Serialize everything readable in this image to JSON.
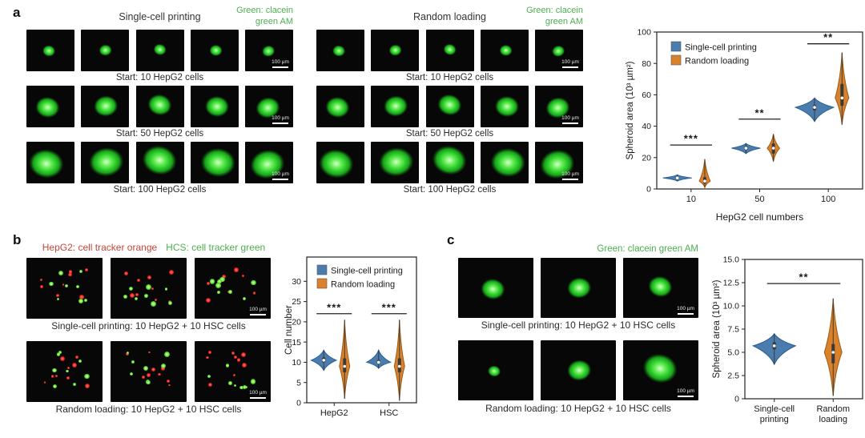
{
  "figure": {
    "scale_bar": "100 µm",
    "panels": {
      "a": {
        "label": "a",
        "blocks": [
          {
            "title": "Single-cell printing",
            "note_line1": "Green: clacein",
            "note_line2": "green AM",
            "rows": [
              {
                "caption": "Start: 10 HepG2 cells"
              },
              {
                "caption": "Start: 50 HepG2 cells"
              },
              {
                "caption": "Start: 100 HepG2 cells"
              }
            ]
          },
          {
            "title": "Random loading",
            "note_line1": "Green: clacein",
            "note_line2": "green AM",
            "rows": [
              {
                "caption": "Start: 10 HepG2 cells"
              },
              {
                "caption": "Start: 50 HepG2 cells"
              },
              {
                "caption": "Start: 100 HepG2 cells"
              }
            ]
          }
        ]
      },
      "b": {
        "label": "b",
        "header_red": "HepG2: cell tracker orange",
        "header_green": "HCS: cell tracker green",
        "rows": [
          {
            "caption": "Single-cell printing: 10 HepG2 + 10 HSC cells"
          },
          {
            "caption": "Random loading: 10 HepG2 + 10 HSC cells"
          }
        ]
      },
      "c": {
        "label": "c",
        "note": "Green: clacein green AM",
        "rows": [
          {
            "caption": "Single-cell printing: 10 HepG2 + 10 HSC cells"
          },
          {
            "caption": "Random loading: 10 HepG2 + 10 HSC cells"
          }
        ]
      }
    },
    "colors": {
      "stain_green": "#4caf50",
      "stain_red": "#cc4437",
      "series_blue": "#4a7cae",
      "series_orange": "#d9822b"
    }
  },
  "chart_data": [
    {
      "type": "violin",
      "ylabel": "Spheroid area (10³ µm²)",
      "xlabel": "HepG2 cell numbers",
      "ylim": [
        0,
        100
      ],
      "yticks": [
        "0",
        "20",
        "40",
        "60",
        "80",
        "100"
      ],
      "categories": [
        "10",
        "50",
        "100"
      ],
      "pair_offset": 0.2,
      "legend": {
        "x": 18,
        "y": 12
      },
      "series": [
        {
          "name": "Single-cell printing",
          "color": "#4a7cae",
          "stroke": "#2d5e8f",
          "violins": [
            {
              "min": 5,
              "q1": 6.3,
              "median": 7,
              "q3": 7.7,
              "max": 9,
              "hw": 0.21
            },
            {
              "min": 22.5,
              "q1": 24.8,
              "median": 26,
              "q3": 27.2,
              "max": 29,
              "hw": 0.21
            },
            {
              "min": 43,
              "q1": 50,
              "median": 52,
              "q3": 53.5,
              "max": 58,
              "hw": 0.28
            }
          ]
        },
        {
          "name": "Random loading",
          "color": "#d9822b",
          "stroke": "#9c5a14",
          "violins": [
            {
              "min": 1,
              "q1": 3.5,
              "median": 5,
              "q3": 7.5,
              "max": 19,
              "hw": 0.08
            },
            {
              "min": 17.5,
              "q1": 22.5,
              "median": 26,
              "q3": 29,
              "max": 35,
              "hw": 0.09
            },
            {
              "min": 41,
              "q1": 53,
              "median": 58,
              "q3": 67,
              "max": 87,
              "hw": 0.1
            }
          ]
        }
      ],
      "significance": [
        {
          "between": [
            [
              0,
              0
            ],
            [
              0,
              1
            ]
          ],
          "label": "***",
          "y": 28
        },
        {
          "between": [
            [
              1,
              0
            ],
            [
              1,
              1
            ]
          ],
          "label": "**",
          "y": 44.5
        },
        {
          "between": [
            [
              2,
              0
            ],
            [
              2,
              1
            ]
          ],
          "label": "**",
          "y": 92.5
        }
      ]
    },
    {
      "type": "violin",
      "ylabel": "Cell number",
      "xlabel": "",
      "ylim": [
        0,
        36
      ],
      "yticks": [
        "0",
        "5",
        "10",
        "15",
        "20",
        "25",
        "30"
      ],
      "categories": [
        "HepG2",
        "HSC"
      ],
      "pair_offset": 0.19,
      "legend": {
        "x": 13,
        "y": 10
      },
      "series": [
        {
          "name": "Single-cell printing",
          "color": "#4a7cae",
          "stroke": "#2d5e8f",
          "violins": [
            {
              "min": 8,
              "q1": 10,
              "median": 10.5,
              "q3": 11.2,
              "max": 13,
              "hw": 0.23
            },
            {
              "min": 8.5,
              "q1": 9.6,
              "median": 10,
              "q3": 10.6,
              "max": 13,
              "hw": 0.22
            }
          ]
        },
        {
          "name": "Random loading",
          "color": "#d9822b",
          "stroke": "#9c5a14",
          "violins": [
            {
              "min": 1,
              "q1": 7.5,
              "median": 9,
              "q3": 11,
              "max": 20.5,
              "hw": 0.095
            },
            {
              "min": 0.5,
              "q1": 7.5,
              "median": 9,
              "q3": 11,
              "max": 20.5,
              "hw": 0.095
            }
          ]
        }
      ],
      "significance": [
        {
          "between": [
            [
              0,
              0
            ],
            [
              0,
              1
            ]
          ],
          "label": "***",
          "y": 22
        },
        {
          "between": [
            [
              1,
              0
            ],
            [
              1,
              1
            ]
          ],
          "label": "***",
          "y": 22
        }
      ]
    },
    {
      "type": "violin",
      "ylabel": "Spheroid area (10³ µm²)",
      "xlabel": "",
      "ylim": [
        0,
        15
      ],
      "yticks": [
        "0",
        "2.5",
        "5.0",
        "7.5",
        "10.0",
        "12.5",
        "15.0"
      ],
      "categories": [
        "Single-cell\nprinting",
        "Random\nloading"
      ],
      "pair_offset": 0,
      "legend": null,
      "series": [
        {
          "name": "Single-cell printing",
          "color": "#4a7cae",
          "stroke": "#2d5e8f",
          "violins": [
            {
              "min": 3.7,
              "q1": 5.3,
              "median": 5.7,
              "q3": 6.1,
              "max": 7.0,
              "hw": 0.36
            },
            null
          ]
        },
        {
          "name": "Random loading",
          "color": "#d9822b",
          "stroke": "#9c5a14",
          "violins": [
            null,
            {
              "min": 0.3,
              "q1": 3.8,
              "median": 5.0,
              "q3": 5.9,
              "max": 10.8,
              "hw": 0.15
            }
          ]
        }
      ],
      "significance": [
        {
          "between": [
            [
              0,
              0
            ],
            [
              1,
              1
            ]
          ],
          "label": "**",
          "y": 12.4
        }
      ]
    }
  ]
}
